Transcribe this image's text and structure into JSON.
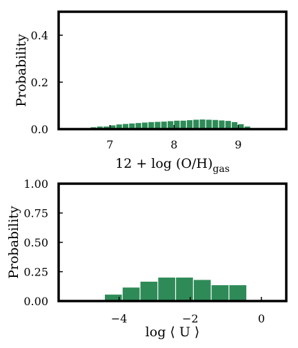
{
  "chart_data": [
    {
      "type": "bar",
      "ylabel": "Probability",
      "xlabel_main": "12 + log (O/H)",
      "xlabel_sub": "gas",
      "xlim": [
        6.2,
        9.75
      ],
      "ylim": [
        0,
        0.5
      ],
      "xticks": [
        7,
        8,
        9
      ],
      "xtick_labels": [
        "7",
        "8",
        "9"
      ],
      "yticks": [
        0.0,
        0.2,
        0.4
      ],
      "ytick_labels": [
        "0.0",
        "0.2",
        "0.4"
      ],
      "bin_width": 0.1,
      "bin_starts": [
        6.5,
        6.6,
        6.7,
        6.8,
        6.9,
        7.0,
        7.1,
        7.2,
        7.3,
        7.4,
        7.5,
        7.6,
        7.7,
        7.8,
        7.9,
        8.0,
        8.1,
        8.2,
        8.3,
        8.4,
        8.5,
        8.6,
        8.7,
        8.8,
        8.9,
        9.0,
        9.1
      ],
      "values": [
        0.002,
        0.004,
        0.008,
        0.011,
        0.011,
        0.016,
        0.02,
        0.022,
        0.024,
        0.026,
        0.028,
        0.03,
        0.031,
        0.032,
        0.034,
        0.036,
        0.036,
        0.038,
        0.04,
        0.041,
        0.04,
        0.039,
        0.037,
        0.035,
        0.03,
        0.021,
        0.011
      ],
      "bar_color": "#2e8b57"
    },
    {
      "type": "bar",
      "ylabel": "Probability",
      "xlabel": "log ⟨ U ⟩",
      "xlim": [
        -5.7,
        0.7
      ],
      "ylim": [
        0,
        1.0
      ],
      "xticks": [
        -4,
        -2,
        0
      ],
      "xtick_labels": [
        "−4",
        "−2",
        "0"
      ],
      "yticks": [
        0.0,
        0.25,
        0.5,
        0.75,
        1.0
      ],
      "ytick_labels": [
        "0.00",
        "0.25",
        "0.50",
        "0.75",
        "1.00"
      ],
      "bin_width": 0.5,
      "bin_starts": [
        -4.4,
        -3.9,
        -3.4,
        -2.9,
        -2.4,
        -1.9,
        -1.4,
        -0.9
      ],
      "values": [
        0.055,
        0.115,
        0.165,
        0.2,
        0.2,
        0.18,
        0.135,
        0.135
      ],
      "bar_color": "#2e8b57"
    }
  ]
}
